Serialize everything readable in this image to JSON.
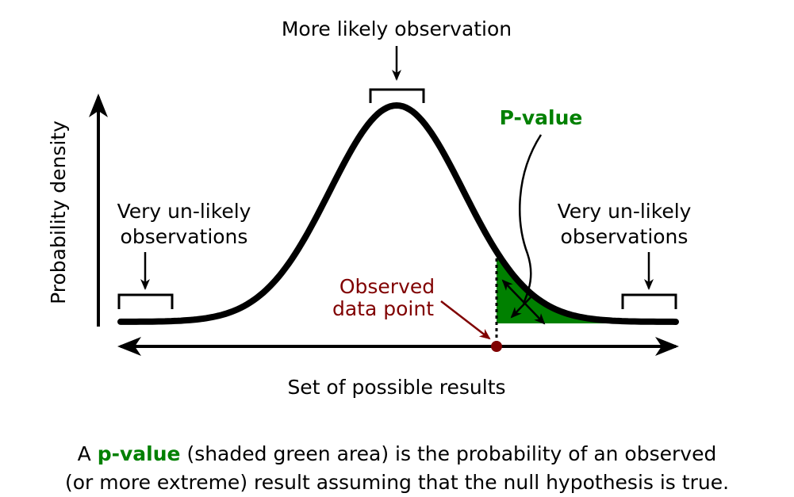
{
  "labels": {
    "top": "More likely observation",
    "y_axis": "Probability density",
    "left": [
      "Very un-likely",
      "observations"
    ],
    "right": [
      "Very un-likely",
      "observations"
    ],
    "p_value": "P-value",
    "observed": [
      "Observed",
      "data point"
    ],
    "x_axis": "Set of possible results"
  },
  "caption": {
    "prefix": "A",
    "highlight": "p-value",
    "line1_rest": "(shaded green area) is the probability of an observed",
    "line2": "(or more extreme) result assuming that the null hypothesis is true."
  }
}
